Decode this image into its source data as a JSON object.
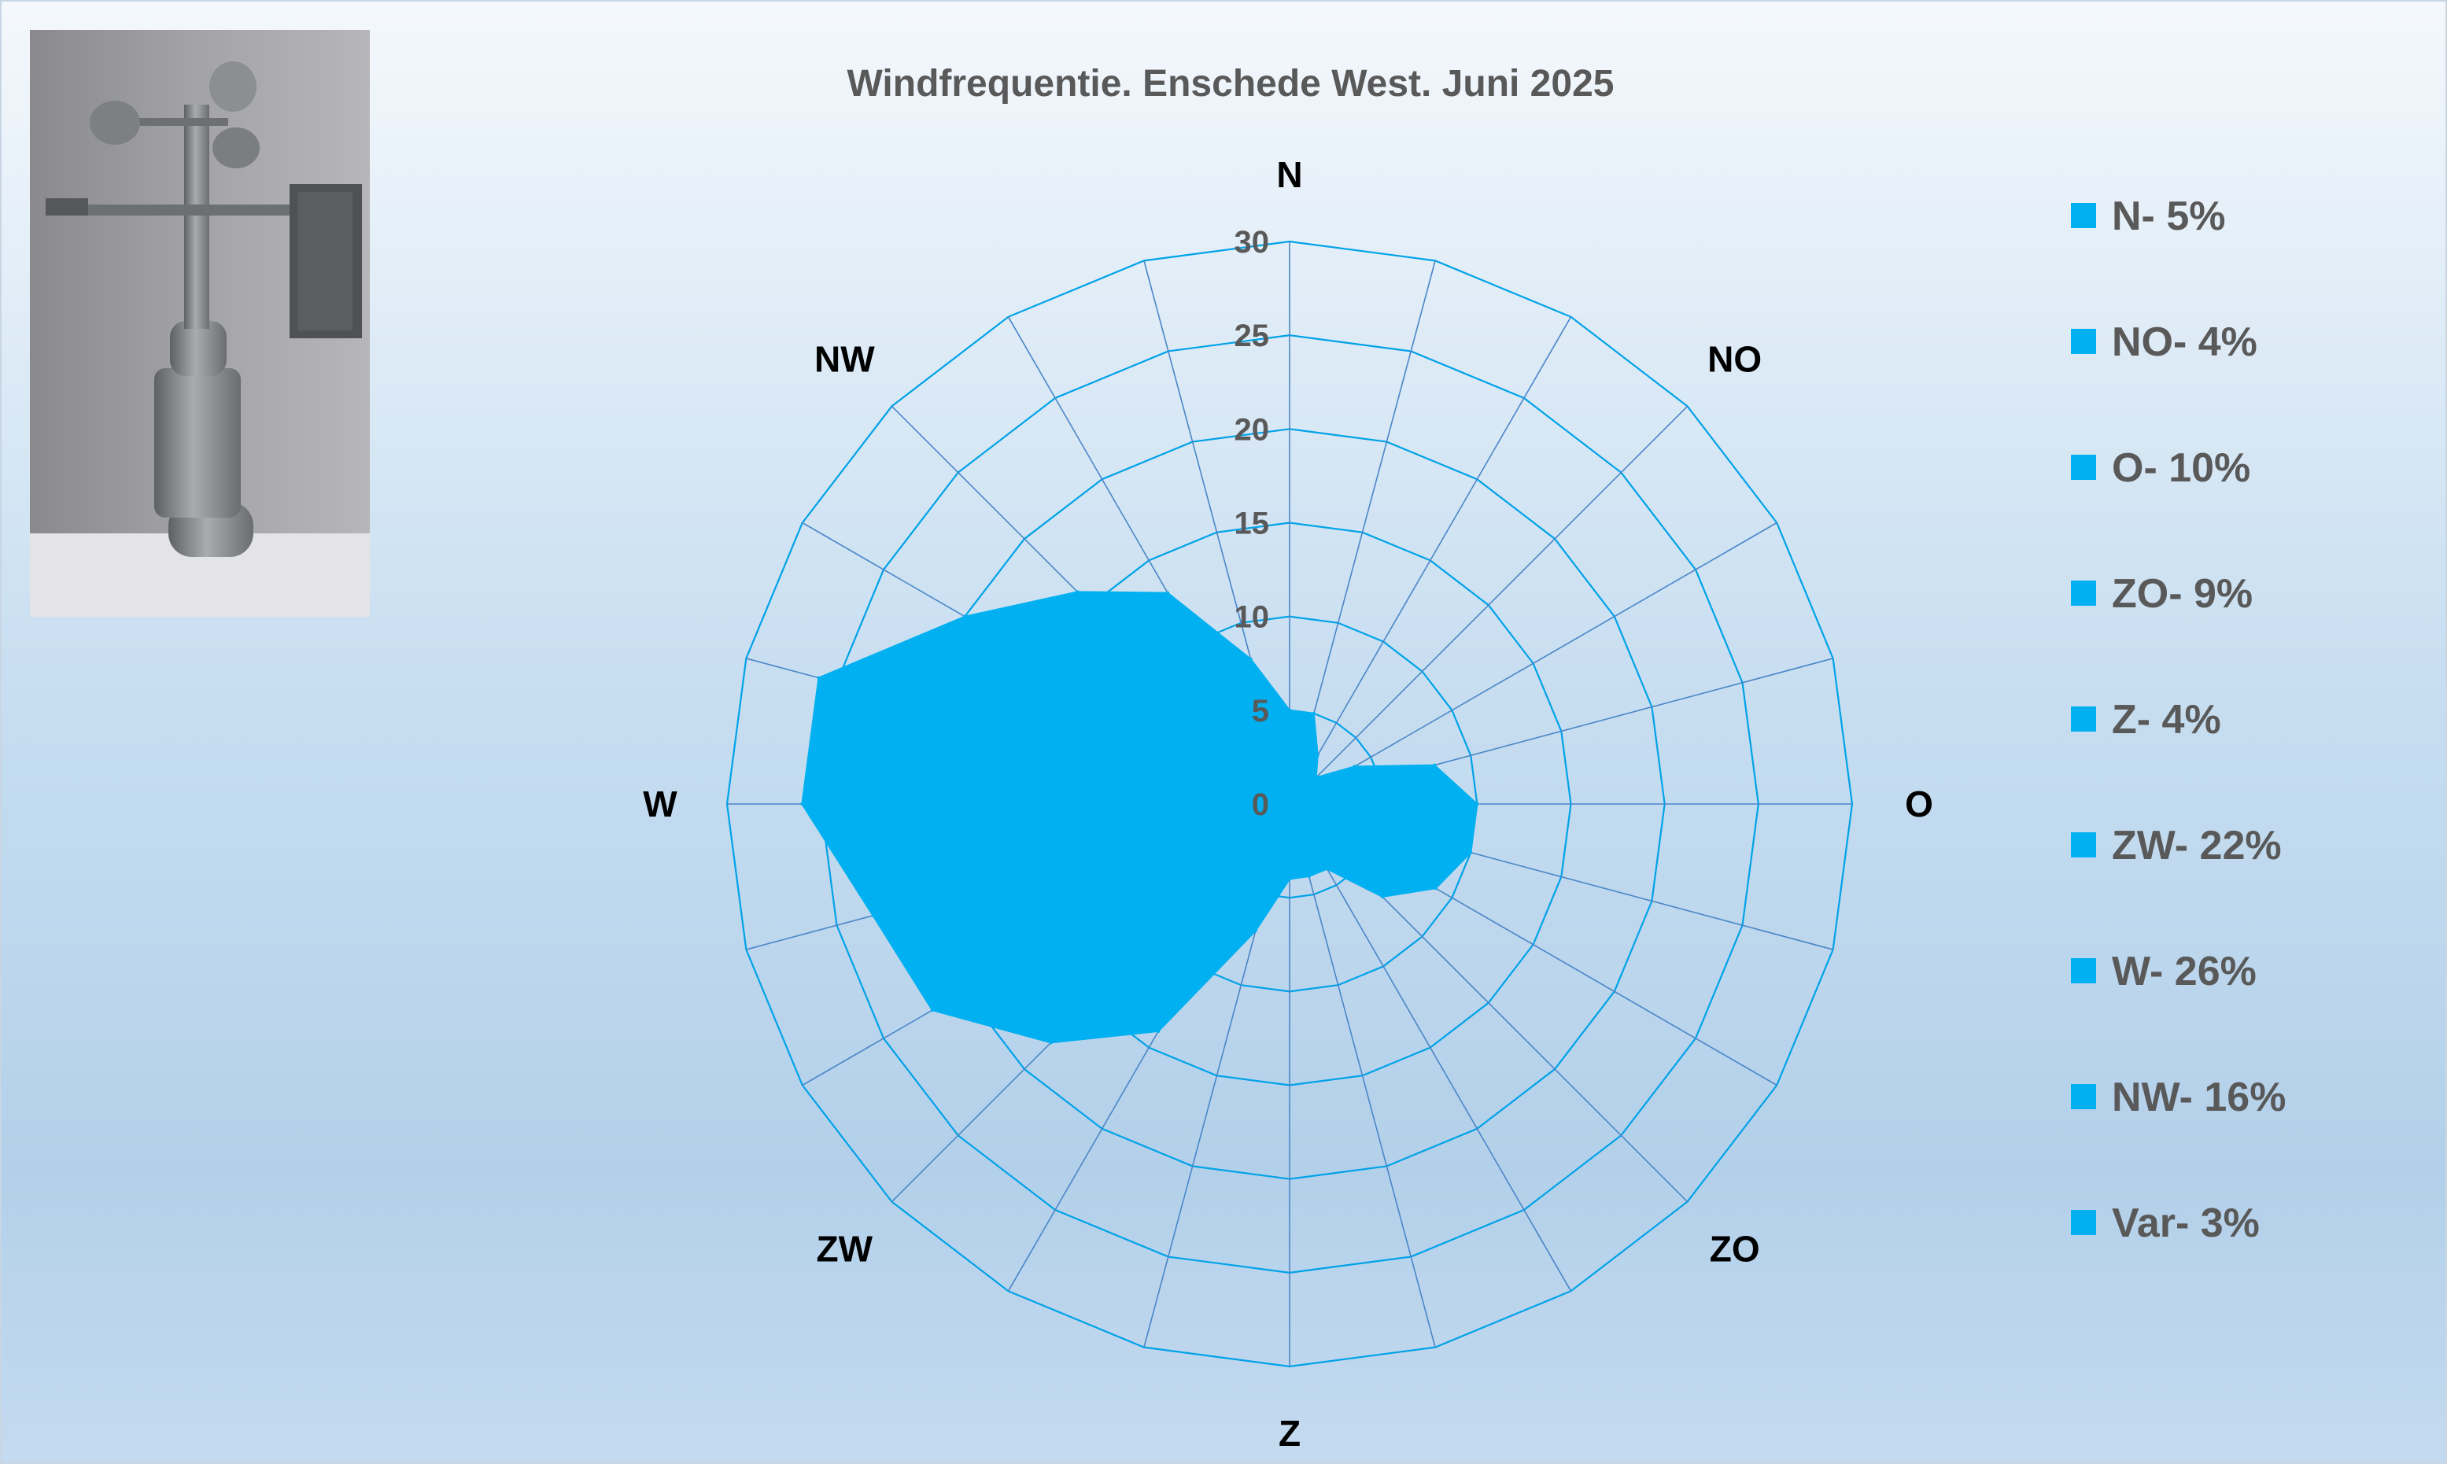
{
  "chart_data": {
    "type": "radar",
    "title": "Windfrequentie. Enschede West. Juni 2025",
    "directions": [
      "N",
      "NO",
      "O",
      "ZO",
      "Z",
      "ZW",
      "W",
      "NW"
    ],
    "spokes": 24,
    "ticks": [
      0,
      5,
      10,
      15,
      20,
      25,
      30
    ],
    "rlim": [
      0,
      30
    ],
    "series": [
      {
        "values": [
          5,
          5,
          3,
          2,
          4,
          8,
          10,
          10,
          9,
          7,
          4,
          4,
          4,
          7,
          14,
          18,
          22,
          23,
          26,
          26,
          20,
          16,
          13,
          8
        ]
      }
    ],
    "legend": [
      "N- 5%",
      "NO- 4%",
      "O- 10%",
      "ZO- 9%",
      "Z- 4%",
      "ZW- 22%",
      "W- 26%",
      "NW- 16%",
      "Var- 3%"
    ],
    "legend_position": "right",
    "fill_color": "#00b0f0",
    "grid_color": "#00a2e8",
    "spoke_color": "#4a86c8",
    "grid": true
  },
  "photo": {
    "icon": "anemometer-photo"
  }
}
